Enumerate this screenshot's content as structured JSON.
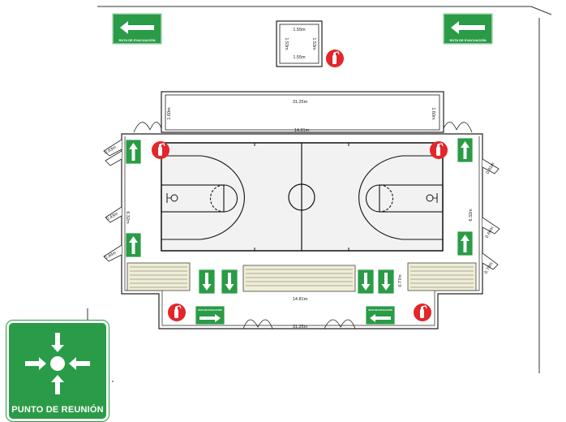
{
  "exit_sign_label": "RUTA DE EVACUACIÓN",
  "small_sign_label": "RUTA DE EVACUACIÓN",
  "assembly_point_label": "PUNTO DE REUNIÓN",
  "dimensions": {
    "room_top": "1.55m",
    "room_bottom": "1.55m",
    "room_left": "1.53m",
    "room_right": "1.53m",
    "top_bleacher_width": "31.25m",
    "top_bleacher_left_depth": "1.60m",
    "top_bleacher_right_depth": "1.60m",
    "court_top_width": "14.81m",
    "court_bottom_width": "14.81m",
    "left_side_top": "0.63m",
    "left_side_mid": "0.43m",
    "left_side_low": "0.44m",
    "left_court_depth": "6.32m",
    "right_side_top": "0.91m",
    "right_court_depth": "6.32m",
    "right_side_mid": "0.66m",
    "right_side_low": "0.79m",
    "bottom_aisle": "0.77m",
    "bottom_width": "31.25m"
  },
  "colors": {
    "sign_green": "#2a9b46",
    "extinguisher_red": "#e3262b",
    "court_gray": "#f2f2f2",
    "line": "#222222"
  }
}
